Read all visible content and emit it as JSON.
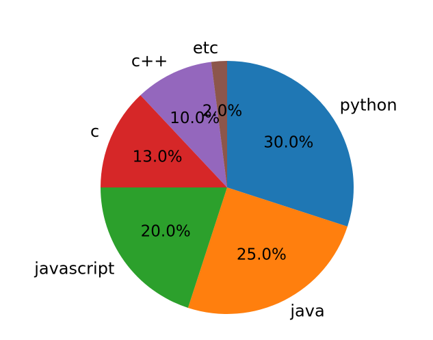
{
  "chart_data": {
    "type": "pie",
    "categories": [
      "python",
      "java",
      "javascript",
      "c",
      "c++",
      "etc"
    ],
    "values": [
      30.0,
      25.0,
      20.0,
      13.0,
      10.0,
      2.0
    ],
    "value_labels": [
      "30.0%",
      "25.0%",
      "20.0%",
      "13.0%",
      "10.0%",
      "2.0%"
    ],
    "colors": [
      "#1f77b4",
      "#ff7f0e",
      "#2ca02c",
      "#d62728",
      "#9467bd",
      "#8c564b"
    ],
    "start_angle_deg": 90,
    "direction": "clockwise"
  }
}
